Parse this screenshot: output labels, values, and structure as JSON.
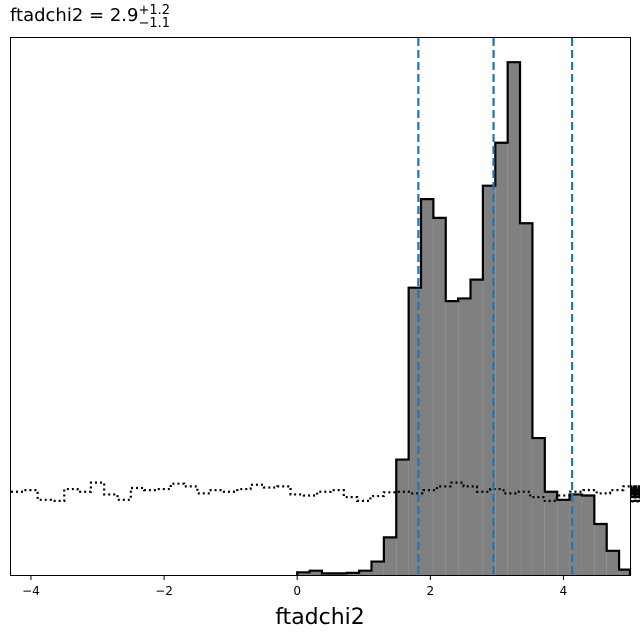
{
  "chart_data": {
    "type": "histogram",
    "title": {
      "name": "ftadchi2",
      "equals": " = ",
      "value": "2.9",
      "upper": "+1.2",
      "lower": "−1.1"
    },
    "xlabel": "ftadchi2",
    "ylabel": "",
    "xlim": [
      -4.3,
      5.0
    ],
    "ylim": [
      0,
      1.0
    ],
    "x_ticks": [
      -4,
      -2,
      0,
      2,
      4
    ],
    "x_tick_labels": [
      "−4",
      "−2",
      "0",
      "2",
      "4"
    ],
    "y_ticks_shown": false,
    "grid": false,
    "legend": "none",
    "posterior": {
      "bin_edges": [
        0.0,
        0.186,
        0.372,
        0.558,
        0.744,
        0.93,
        1.116,
        1.302,
        1.488,
        1.674,
        1.86,
        2.046,
        2.232,
        2.418,
        2.604,
        2.79,
        2.976,
        3.162,
        3.348,
        3.534,
        3.72,
        3.906,
        4.092,
        4.278,
        4.464,
        4.65,
        4.836,
        5.0
      ],
      "values": [
        0.005,
        0.008,
        0.003,
        0.003,
        0.004,
        0.008,
        0.025,
        0.07,
        0.215,
        0.535,
        0.7,
        0.665,
        0.51,
        0.515,
        0.55,
        0.725,
        0.805,
        0.955,
        0.655,
        0.255,
        0.155,
        0.14,
        0.15,
        0.148,
        0.095,
        0.045,
        0.01
      ],
      "fill_color": "#808080",
      "edge_color": "#000000"
    },
    "prior": {
      "x_start": -4.3,
      "step": 0.2,
      "values": [
        0.155,
        0.158,
        0.14,
        0.138,
        0.16,
        0.155,
        0.172,
        0.15,
        0.14,
        0.162,
        0.158,
        0.16,
        0.17,
        0.165,
        0.152,
        0.158,
        0.155,
        0.16,
        0.168,
        0.163,
        0.165,
        0.15,
        0.148,
        0.155,
        0.158,
        0.145,
        0.138,
        0.147,
        0.154,
        0.155,
        0.152,
        0.158,
        0.165,
        0.172,
        0.165,
        0.155,
        0.16,
        0.152,
        0.155,
        0.145,
        0.138,
        0.148,
        0.155,
        0.158,
        0.152,
        0.158,
        0.165,
        0.16,
        0.162,
        0.157,
        0.152,
        0.158,
        0.155,
        0.145,
        0.138,
        0.148,
        0.15,
        0.158,
        0.145,
        0.137,
        0.15,
        0.145,
        0.15,
        0.158,
        0.165,
        0.162,
        0.158,
        0.155,
        0.16,
        0.162,
        0.158,
        0.155,
        0.155,
        0.158,
        0.155,
        0.153,
        0.165,
        0.152,
        0.148,
        0.145,
        0.15,
        0.15,
        0.155,
        0.155,
        0.157,
        0.155,
        0.155,
        0.153,
        0.148,
        0.155,
        0.158,
        0.165,
        0.163
      ],
      "line_color": "#000000",
      "line_style": "dotted"
    },
    "quantiles": {
      "values": [
        1.82,
        2.95,
        4.13
      ],
      "color": "#1f77b4",
      "line_style": "dashed"
    }
  }
}
